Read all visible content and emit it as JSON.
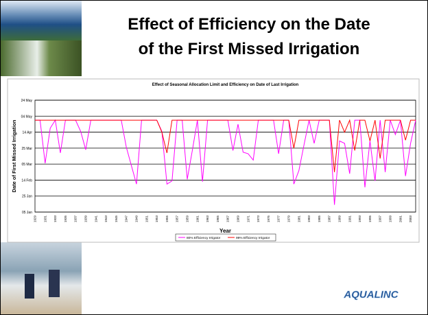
{
  "slide": {
    "title_lines": [
      "Effect of Efficiency on the Date",
      "of the First Missed Irrigation"
    ],
    "logo": "AQUALINC"
  },
  "chart_data": {
    "type": "line",
    "title": "Effect of Seasonal Allocation Limit and Efficiency on Date of Last Irrigation",
    "xlabel": "Year",
    "ylabel": "Date of First Missed Irrigation",
    "categories": [
      "1929",
      null,
      "1931",
      null,
      "1933",
      null,
      "1935",
      null,
      "1937",
      null,
      "1939",
      null,
      "1941",
      null,
      "1943",
      null,
      "1945",
      null,
      "1947",
      null,
      "1949",
      null,
      "1951",
      null,
      "1953",
      null,
      "1955",
      null,
      "1957",
      null,
      "1959",
      null,
      "1961",
      null,
      "1963",
      null,
      "1965",
      null,
      "1967",
      null,
      "1969",
      null,
      "1971",
      null,
      "1973",
      null,
      "1975",
      null,
      "1977",
      null,
      "1979",
      null,
      "1981",
      null,
      "1983",
      null,
      "1985",
      null,
      "1987",
      null,
      "1989",
      null,
      "1991",
      null,
      "1993",
      null,
      "1995",
      null,
      "1997",
      null,
      "1999",
      null,
      "2001",
      null,
      "2003",
      null
    ],
    "series": [
      {
        "name": "80% Efficiency Irrigator",
        "color": "#ff00ff",
        "values": [
          120,
          120,
          66,
          110,
          120,
          79,
          120,
          120,
          120,
          106,
          83,
          120,
          120,
          120,
          120,
          120,
          120,
          120,
          86,
          63,
          40,
          120,
          120,
          120,
          120,
          106,
          40,
          44,
          120,
          120,
          46,
          82,
          120,
          43,
          120,
          120,
          120,
          120,
          120,
          82,
          115,
          80,
          78,
          70,
          120,
          120,
          120,
          120,
          78,
          120,
          120,
          40,
          57,
          89,
          120,
          91,
          120,
          120,
          120,
          14,
          94,
          91,
          53,
          120,
          120,
          36,
          94,
          44,
          120,
          55,
          120,
          102,
          120,
          50,
          91,
          120
        ]
      },
      {
        "name": "99% Efficiency Irrigator",
        "color": "#ff0000",
        "values": [
          120,
          120,
          120,
          120,
          120,
          120,
          120,
          120,
          120,
          120,
          120,
          120,
          120,
          120,
          120,
          120,
          120,
          120,
          120,
          120,
          120,
          120,
          120,
          120,
          120,
          105,
          79,
          120,
          120,
          120,
          120,
          120,
          120,
          120,
          120,
          120,
          120,
          120,
          120,
          120,
          120,
          120,
          120,
          120,
          120,
          120,
          120,
          120,
          120,
          120,
          120,
          85,
          120,
          120,
          120,
          120,
          120,
          120,
          120,
          55,
          120,
          105,
          120,
          82,
          120,
          120,
          94,
          120,
          72,
          120,
          120,
          120,
          120,
          95,
          120,
          120
        ]
      }
    ],
    "ylim": [
      5,
      145
    ],
    "yticks": [
      {
        "value": 5,
        "label": "05 Jan"
      },
      {
        "value": 25,
        "label": "25 Jan"
      },
      {
        "value": 45,
        "label": "14 Feb"
      },
      {
        "value": 65,
        "label": "05 Mar"
      },
      {
        "value": 85,
        "label": "25 Mar"
      },
      {
        "value": 105,
        "label": "14 Apr"
      },
      {
        "value": 125,
        "label": "04 May"
      },
      {
        "value": 145,
        "label": "24 May"
      }
    ],
    "grid": true,
    "legend": "bottom"
  }
}
